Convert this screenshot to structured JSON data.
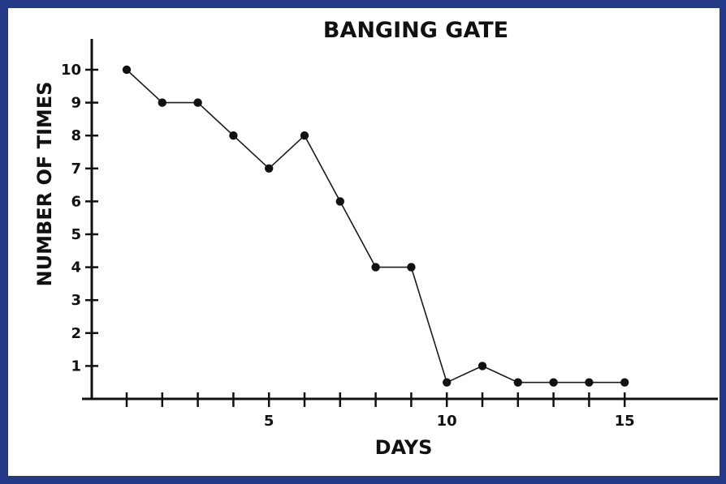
{
  "chart_data": {
    "type": "line",
    "title": "BANGING GATE",
    "xlabel": "DAYS",
    "ylabel": "NUMBER OF TIMES",
    "x": [
      1,
      2,
      3,
      4,
      5,
      6,
      7,
      8,
      9,
      10,
      11,
      12,
      13,
      14,
      15
    ],
    "values": [
      10,
      9,
      9,
      8,
      7,
      8,
      6,
      4,
      4,
      0.5,
      1,
      0.5,
      0.5,
      0.5,
      0.5
    ],
    "xlim": [
      0,
      17.5
    ],
    "ylim": [
      0,
      11
    ],
    "x_ticks": [
      1,
      2,
      3,
      4,
      5,
      6,
      7,
      8,
      9,
      10,
      11,
      12,
      13,
      14,
      15
    ],
    "x_tick_labels": [
      {
        "x": 5,
        "label": "5"
      },
      {
        "x": 10,
        "label": "10"
      },
      {
        "x": 15,
        "label": "15"
      }
    ],
    "y_ticks": [
      {
        "y": 1,
        "label": "1"
      },
      {
        "y": 2,
        "label": "2"
      },
      {
        "y": 3,
        "label": "3"
      },
      {
        "y": 4,
        "label": "4"
      },
      {
        "y": 5,
        "label": "5"
      },
      {
        "y": 6,
        "label": "6"
      },
      {
        "y": 7,
        "label": "7"
      },
      {
        "y": 8,
        "label": "8"
      },
      {
        "y": 9,
        "label": "9"
      },
      {
        "y": 10,
        "label": "10"
      }
    ],
    "grid": false,
    "legend": "none",
    "colors": {
      "frame": "#253a86",
      "line": "#1a1a1a",
      "marker": "#111111",
      "text": "#111111"
    }
  }
}
